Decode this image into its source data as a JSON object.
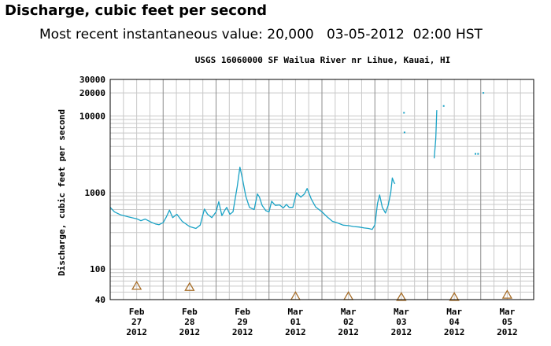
{
  "page": {
    "heading": "Discharge, cubic feet per second",
    "recent_label": "Most recent instantaneous value:",
    "recent_value": "20,000",
    "recent_date": "03-05-2012",
    "recent_time": "02:00 HST"
  },
  "chart_data": {
    "type": "line",
    "title": "USGS 16060000 SF Wailua River nr Lihue, Kauai, HI",
    "ylabel": "Discharge, cubic feet per second",
    "xlabel": "",
    "yscale": "log",
    "ylim": [
      40,
      30000
    ],
    "xlim_days": [
      0,
      8
    ],
    "grid": true,
    "colors": {
      "series": "#1ba3c6",
      "marker": "#a86f2a",
      "grid": "#c8c8c8",
      "major_grid": "#8c8c8c"
    },
    "x_ticks": [
      {
        "line1": "Feb",
        "line2": "27",
        "line3": "2012"
      },
      {
        "line1": "Feb",
        "line2": "28",
        "line3": "2012"
      },
      {
        "line1": "Feb",
        "line2": "29",
        "line3": "2012"
      },
      {
        "line1": "Mar",
        "line2": "01",
        "line3": "2012"
      },
      {
        "line1": "Mar",
        "line2": "02",
        "line3": "2012"
      },
      {
        "line1": "Mar",
        "line2": "03",
        "line3": "2012"
      },
      {
        "line1": "Mar",
        "line2": "04",
        "line3": "2012"
      },
      {
        "line1": "Mar",
        "line2": "05",
        "line3": "2012"
      }
    ],
    "y_ticks": [
      {
        "value": 40,
        "label": "40"
      },
      {
        "value": 100,
        "label": "100"
      },
      {
        "value": 1000,
        "label": "1000"
      },
      {
        "value": 10000,
        "label": "10000"
      },
      {
        "value": 20000,
        "label": "20000"
      },
      {
        "value": 30000,
        "label": "30000"
      }
    ],
    "series": [
      {
        "values": [
          [
            0.0,
            640
          ],
          [
            0.08,
            560
          ],
          [
            0.2,
            510
          ],
          [
            0.35,
            480
          ],
          [
            0.5,
            455
          ],
          [
            0.58,
            430
          ],
          [
            0.66,
            450
          ],
          [
            0.76,
            415
          ],
          [
            0.85,
            390
          ],
          [
            0.92,
            380
          ],
          [
            1.0,
            405
          ],
          [
            1.06,
            480
          ],
          [
            1.12,
            590
          ],
          [
            1.18,
            470
          ],
          [
            1.26,
            520
          ],
          [
            1.36,
            420
          ],
          [
            1.5,
            360
          ],
          [
            1.62,
            340
          ],
          [
            1.7,
            375
          ],
          [
            1.78,
            610
          ],
          [
            1.84,
            520
          ],
          [
            1.92,
            470
          ],
          [
            2.0,
            560
          ],
          [
            2.05,
            760
          ],
          [
            2.11,
            500
          ],
          [
            2.16,
            580
          ],
          [
            2.2,
            640
          ],
          [
            2.26,
            520
          ],
          [
            2.32,
            560
          ],
          [
            2.4,
            1200
          ],
          [
            2.45,
            2150
          ],
          [
            2.5,
            1500
          ],
          [
            2.56,
            900
          ],
          [
            2.63,
            640
          ],
          [
            2.72,
            600
          ],
          [
            2.78,
            960
          ],
          [
            2.82,
            870
          ],
          [
            2.87,
            680
          ],
          [
            2.94,
            580
          ],
          [
            3.0,
            560
          ],
          [
            3.05,
            770
          ],
          [
            3.12,
            680
          ],
          [
            3.2,
            690
          ],
          [
            3.27,
            630
          ],
          [
            3.33,
            700
          ],
          [
            3.38,
            640
          ],
          [
            3.45,
            640
          ],
          [
            3.52,
            990
          ],
          [
            3.6,
            870
          ],
          [
            3.67,
            960
          ],
          [
            3.72,
            1130
          ],
          [
            3.8,
            820
          ],
          [
            3.88,
            650
          ],
          [
            4.0,
            560
          ],
          [
            4.1,
            480
          ],
          [
            4.2,
            420
          ],
          [
            4.3,
            400
          ],
          [
            4.4,
            375
          ],
          [
            4.5,
            370
          ],
          [
            4.6,
            360
          ],
          [
            4.7,
            355
          ],
          [
            4.8,
            345
          ],
          [
            4.88,
            340
          ],
          [
            4.95,
            330
          ],
          [
            5.0,
            380
          ],
          [
            5.05,
            720
          ],
          [
            5.09,
            930
          ],
          [
            5.14,
            640
          ],
          [
            5.2,
            540
          ],
          [
            5.25,
            680
          ],
          [
            5.3,
            1000
          ],
          [
            5.33,
            1550
          ],
          [
            5.36,
            1360
          ],
          [
            5.38,
            1300
          ]
        ]
      },
      {
        "values": [
          [
            6.12,
            2800
          ],
          [
            6.15,
            5000
          ],
          [
            6.17,
            11900
          ]
        ]
      }
    ],
    "isolated_points": [
      [
        5.55,
        11000
      ],
      [
        5.56,
        6100
      ],
      [
        6.3,
        13500
      ],
      [
        6.9,
        3200
      ],
      [
        6.95,
        3200
      ],
      [
        7.05,
        20000
      ]
    ],
    "markers": [
      {
        "x": 0.5,
        "y": 60
      },
      {
        "x": 1.5,
        "y": 58
      },
      {
        "x": 3.5,
        "y": 44
      },
      {
        "x": 4.5,
        "y": 44
      },
      {
        "x": 5.5,
        "y": 43
      },
      {
        "x": 6.5,
        "y": 43
      },
      {
        "x": 7.5,
        "y": 46
      }
    ]
  }
}
